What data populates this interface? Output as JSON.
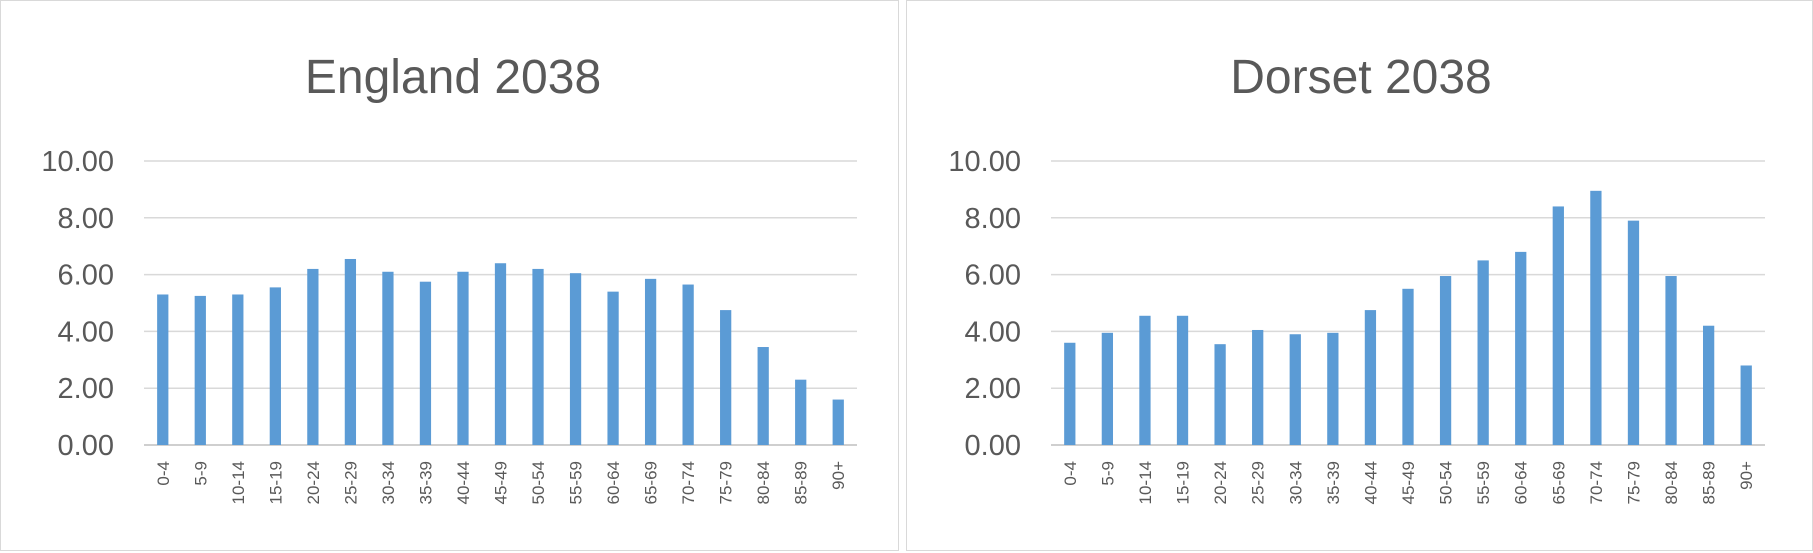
{
  "chart_data": [
    {
      "type": "bar",
      "title": "England 2038",
      "categories": [
        "0-4",
        "5-9",
        "10-14",
        "15-19",
        "20-24",
        "25-29",
        "30-34",
        "35-39",
        "40-44",
        "45-49",
        "50-54",
        "55-59",
        "60-64",
        "65-69",
        "70-74",
        "75-79",
        "80-84",
        "85-89",
        "90+"
      ],
      "series": [
        {
          "values": [
            5.3,
            5.25,
            5.3,
            5.55,
            6.2,
            6.55,
            6.1,
            5.75,
            6.1,
            6.4,
            6.2,
            6.05,
            5.4,
            5.85,
            5.65,
            4.75,
            3.45,
            2.3,
            1.6
          ]
        }
      ],
      "ylim": [
        0,
        10
      ],
      "yticks": [
        "0.00",
        "2.00",
        "4.00",
        "6.00",
        "8.00",
        "10.00"
      ],
      "xlabel": "",
      "ylabel": "",
      "grid": true,
      "bar_color": "#5b9bd5"
    },
    {
      "type": "bar",
      "title": "Dorset 2038",
      "categories": [
        "0-4",
        "5-9",
        "10-14",
        "15-19",
        "20-24",
        "25-29",
        "30-34",
        "35-39",
        "40-44",
        "45-49",
        "50-54",
        "55-59",
        "60-64",
        "65-69",
        "70-74",
        "75-79",
        "80-84",
        "85-89",
        "90+"
      ],
      "series": [
        {
          "values": [
            3.6,
            3.95,
            4.55,
            4.55,
            3.55,
            4.05,
            3.9,
            3.95,
            4.75,
            5.5,
            5.95,
            6.5,
            6.8,
            8.4,
            8.95,
            7.9,
            5.95,
            4.2,
            2.8
          ]
        }
      ],
      "ylim": [
        0,
        10
      ],
      "yticks": [
        "0.00",
        "2.00",
        "4.00",
        "6.00",
        "8.00",
        "10.00"
      ],
      "xlabel": "",
      "ylabel": "",
      "grid": true,
      "bar_color": "#5b9bd5"
    }
  ]
}
